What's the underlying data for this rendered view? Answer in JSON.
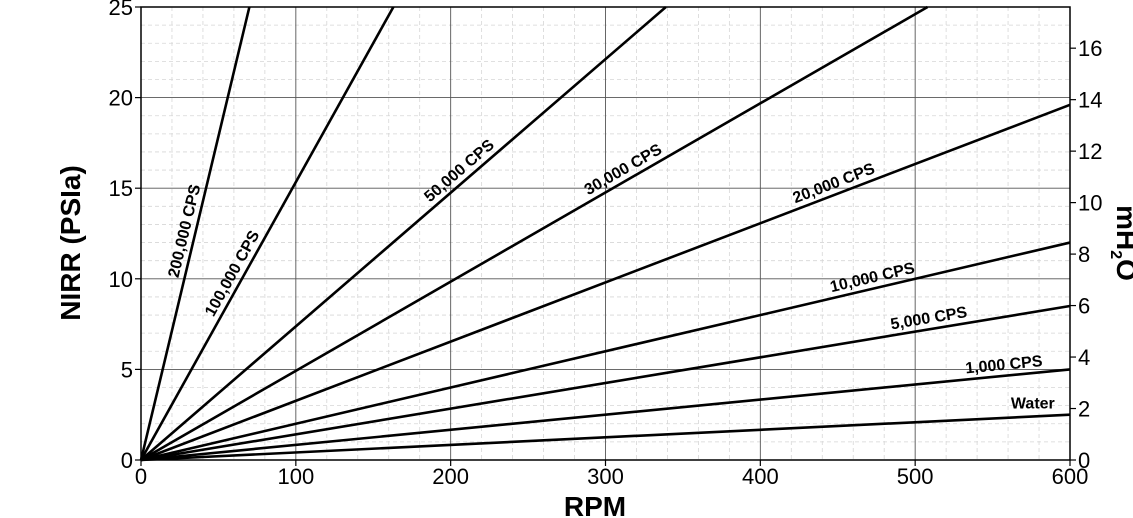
{
  "chart_data": {
    "type": "line",
    "xlabel": "RPM",
    "ylabel": "NIRR (PSIa)",
    "y2label_main": "mH",
    "y2label_sub": "2",
    "y2label_end": "O",
    "xlim": [
      0,
      600
    ],
    "ylim": [
      0,
      25
    ],
    "y2lim": [
      0,
      17.6
    ],
    "x_ticks": [
      0,
      100,
      200,
      300,
      400,
      500,
      600
    ],
    "x_tick_labels": [
      "0",
      "100",
      "200",
      "300",
      "400",
      "500",
      "600"
    ],
    "y_ticks": [
      0,
      5,
      10,
      15,
      20,
      25
    ],
    "y_tick_labels": [
      "0",
      "5",
      "10",
      "15",
      "20",
      "25"
    ],
    "y2_ticks": [
      0,
      2,
      4,
      6,
      8,
      10,
      12,
      14,
      16
    ],
    "y2_tick_labels": [
      "0",
      "2",
      "4",
      "6",
      "8",
      "10",
      "12",
      "14",
      "16"
    ],
    "grid": true,
    "series": [
      {
        "name": "Water",
        "x": [
          0,
          600
        ],
        "y": [
          0,
          2.5
        ]
      },
      {
        "name": "1,000 CPS",
        "x": [
          0,
          600
        ],
        "y": [
          0,
          5.0
        ]
      },
      {
        "name": "5,000 CPS",
        "x": [
          0,
          600
        ],
        "y": [
          0,
          8.5
        ]
      },
      {
        "name": "10,000 CPS",
        "x": [
          0,
          600
        ],
        "y": [
          0,
          12.0
        ]
      },
      {
        "name": "20,000 CPS",
        "x": [
          0,
          600
        ],
        "y": [
          0,
          19.6
        ]
      },
      {
        "name": "30,000 CPS",
        "x": [
          0,
          508
        ],
        "y": [
          0,
          25
        ]
      },
      {
        "name": "50,000 CPS",
        "x": [
          0,
          339
        ],
        "y": [
          0,
          25
        ]
      },
      {
        "name": "100,000 CPS",
        "x": [
          0,
          163
        ],
        "y": [
          0,
          25
        ]
      },
      {
        "name": "200,000 CPS",
        "x": [
          0,
          70
        ],
        "y": [
          0,
          25
        ]
      }
    ]
  }
}
